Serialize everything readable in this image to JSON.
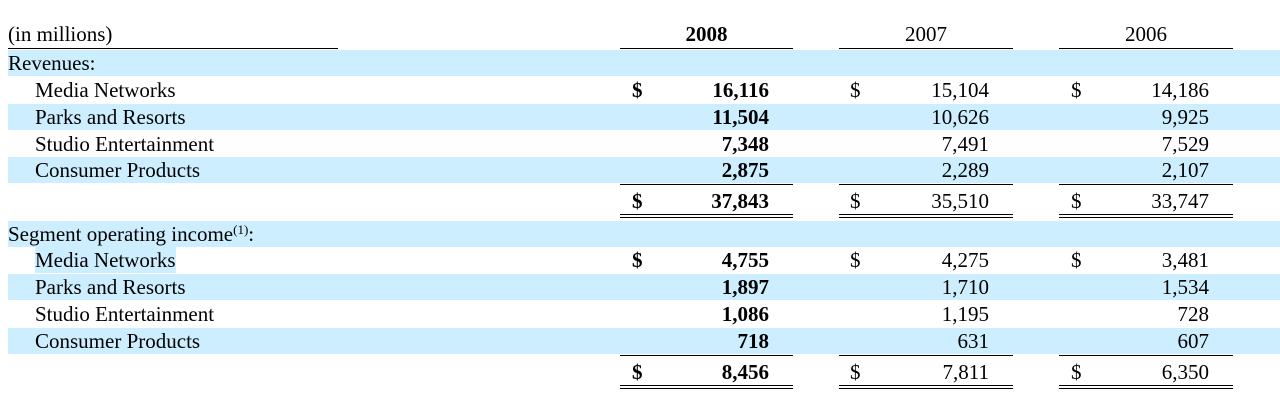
{
  "header": {
    "label": "(in millions)",
    "years": [
      "2008",
      "2007",
      "2006"
    ]
  },
  "revenues": {
    "title": "Revenues:",
    "rows": [
      {
        "label": "Media Networks",
        "values": [
          "16,116",
          "15,104",
          "14,186"
        ],
        "dollar": true
      },
      {
        "label": "Parks and Resorts",
        "values": [
          "11,504",
          "10,626",
          "9,925"
        ],
        "dollar": false
      },
      {
        "label": "Studio Entertainment",
        "values": [
          "7,348",
          "7,491",
          "7,529"
        ],
        "dollar": false
      },
      {
        "label": "Consumer Products",
        "values": [
          "2,875",
          "2,289",
          "2,107"
        ],
        "dollar": false
      }
    ],
    "total": {
      "values": [
        "37,843",
        "35,510",
        "33,747"
      ]
    }
  },
  "segment": {
    "title": "Segment operating income",
    "footnote": "(1)",
    "suffix": ":",
    "rows": [
      {
        "label": "Media Networks",
        "values": [
          "4,755",
          "4,275",
          "3,481"
        ],
        "dollar": true
      },
      {
        "label": "Parks and Resorts",
        "values": [
          "1,897",
          "1,710",
          "1,534"
        ],
        "dollar": false
      },
      {
        "label": "Studio Entertainment",
        "values": [
          "1,086",
          "1,195",
          "728"
        ],
        "dollar": false
      },
      {
        "label": "Consumer Products",
        "values": [
          "718",
          "631",
          "607"
        ],
        "dollar": false
      }
    ],
    "total": {
      "values": [
        "8,456",
        "7,811",
        "6,350"
      ]
    }
  },
  "currency_symbol": "$",
  "colors": {
    "band": "#cceeff"
  }
}
